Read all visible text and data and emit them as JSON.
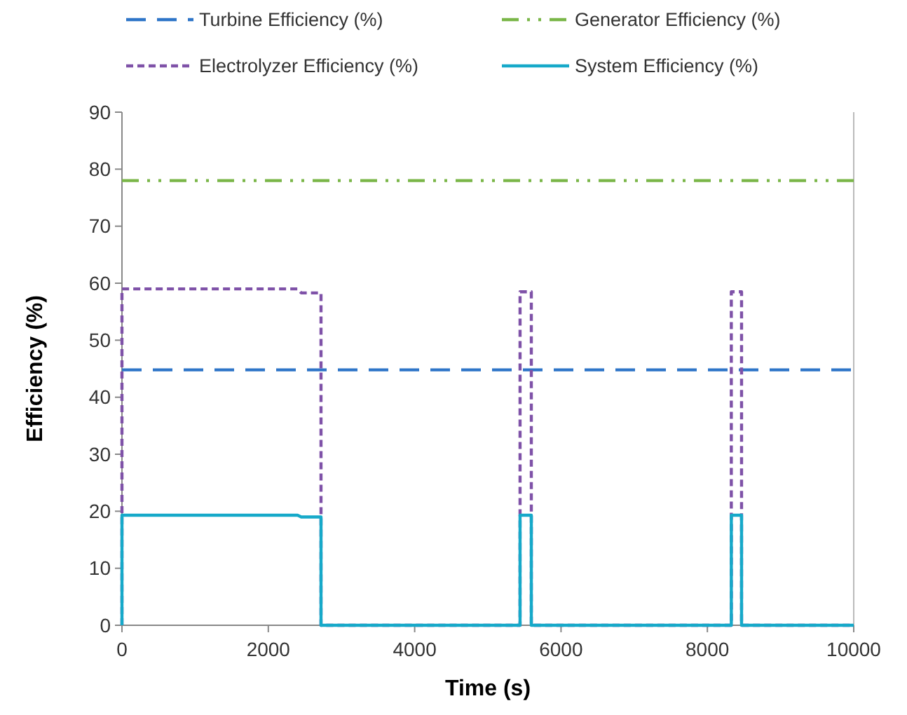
{
  "chart_data": {
    "type": "line",
    "xlabel": "Time (s)",
    "ylabel": "Efficiency (%)",
    "xlim": [
      0,
      10000
    ],
    "xticks": [
      0,
      2000,
      4000,
      6000,
      8000,
      10000
    ],
    "ylim": [
      0,
      90
    ],
    "yticks": [
      0,
      10,
      20,
      30,
      40,
      50,
      60,
      70,
      80,
      90
    ],
    "grid": false,
    "legend": "top",
    "series": [
      {
        "name": "Turbine Efficiency (%)",
        "color": "#2e75c8",
        "line_style": "dashed",
        "x": [
          0,
          10000
        ],
        "values": [
          44.8,
          44.8
        ]
      },
      {
        "name": "Generator Efficiency (%)",
        "color": "#7ab648",
        "line_style": "dashdot",
        "x": [
          0,
          10000
        ],
        "values": [
          78,
          78
        ]
      },
      {
        "name": "Electrolyzer Efficiency (%)",
        "color": "#7f52a8",
        "line_style": "dotted",
        "x": [
          0,
          0,
          2400,
          2450,
          2720,
          2720,
          5440,
          5440,
          5594,
          5594,
          8327,
          8327,
          8467,
          8467,
          10000
        ],
        "values": [
          0,
          59,
          59,
          58.3,
          58.3,
          0,
          0,
          58.5,
          58.5,
          0,
          0,
          58.5,
          58.5,
          0,
          0
        ]
      },
      {
        "name": "System Efficiency (%)",
        "color": "#16a9c9",
        "line_style": "solid",
        "x": [
          0,
          0,
          2400,
          2450,
          2720,
          2720,
          5440,
          5440,
          5594,
          5594,
          8327,
          8327,
          8467,
          8467,
          10000
        ],
        "values": [
          0,
          19.3,
          19.3,
          19.0,
          19.0,
          0,
          0,
          19.3,
          19.3,
          0,
          0,
          19.3,
          19.3,
          0,
          0
        ]
      }
    ]
  }
}
